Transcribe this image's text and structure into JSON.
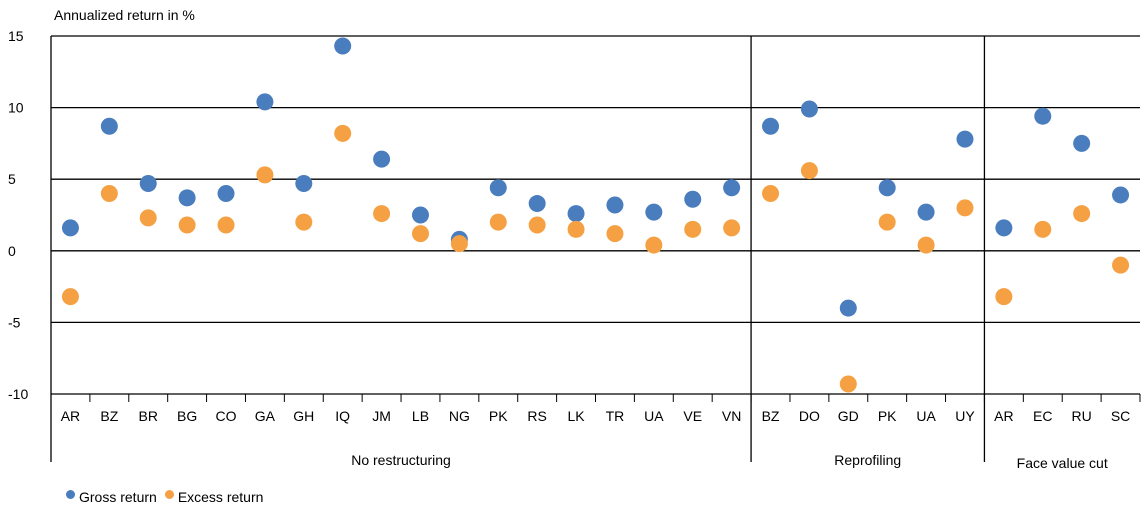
{
  "chart_data": {
    "type": "scatter",
    "ylabel": "Annualized return in %",
    "ylim": [
      -10,
      15
    ],
    "yticks": [
      15,
      10,
      5,
      0,
      -5,
      -10
    ],
    "grid": true,
    "legend_position": "bottom-left",
    "colors": {
      "gross": "#4a7dbe",
      "excess": "#f5a042"
    },
    "groups": [
      {
        "name": "No restructuring",
        "start": 0,
        "count": 18
      },
      {
        "name": "Reprofiling",
        "start": 18,
        "count": 6
      },
      {
        "name": "Face value cut",
        "start": 24,
        "count": 4
      }
    ],
    "categories": [
      "AR",
      "BZ",
      "BR",
      "BG",
      "CO",
      "GA",
      "GH",
      "IQ",
      "JM",
      "LB",
      "NG",
      "PK",
      "RS",
      "LK",
      "TR",
      "UA",
      "VE",
      "VN",
      "BZ",
      "DO",
      "GD",
      "PK",
      "UA",
      "UY",
      "AR",
      "EC",
      "RU",
      "SC"
    ],
    "series": [
      {
        "name": "Gross return",
        "key": "gross",
        "values": [
          1.6,
          8.7,
          4.7,
          3.7,
          4.0,
          10.4,
          4.7,
          14.3,
          6.4,
          2.5,
          0.8,
          4.4,
          3.3,
          2.6,
          3.2,
          2.7,
          3.6,
          4.4,
          8.7,
          9.9,
          -4.0,
          4.4,
          2.7,
          7.8,
          1.6,
          9.4,
          7.5,
          3.9
        ]
      },
      {
        "name": "Excess return",
        "key": "excess",
        "values": [
          -3.2,
          4.0,
          2.3,
          1.8,
          1.8,
          5.3,
          2.0,
          8.2,
          2.6,
          1.2,
          0.5,
          2.0,
          1.8,
          1.5,
          1.2,
          0.4,
          1.5,
          1.6,
          4.0,
          5.6,
          -9.3,
          2.0,
          0.4,
          3.0,
          -3.2,
          1.5,
          2.6,
          -1.0
        ]
      }
    ]
  }
}
